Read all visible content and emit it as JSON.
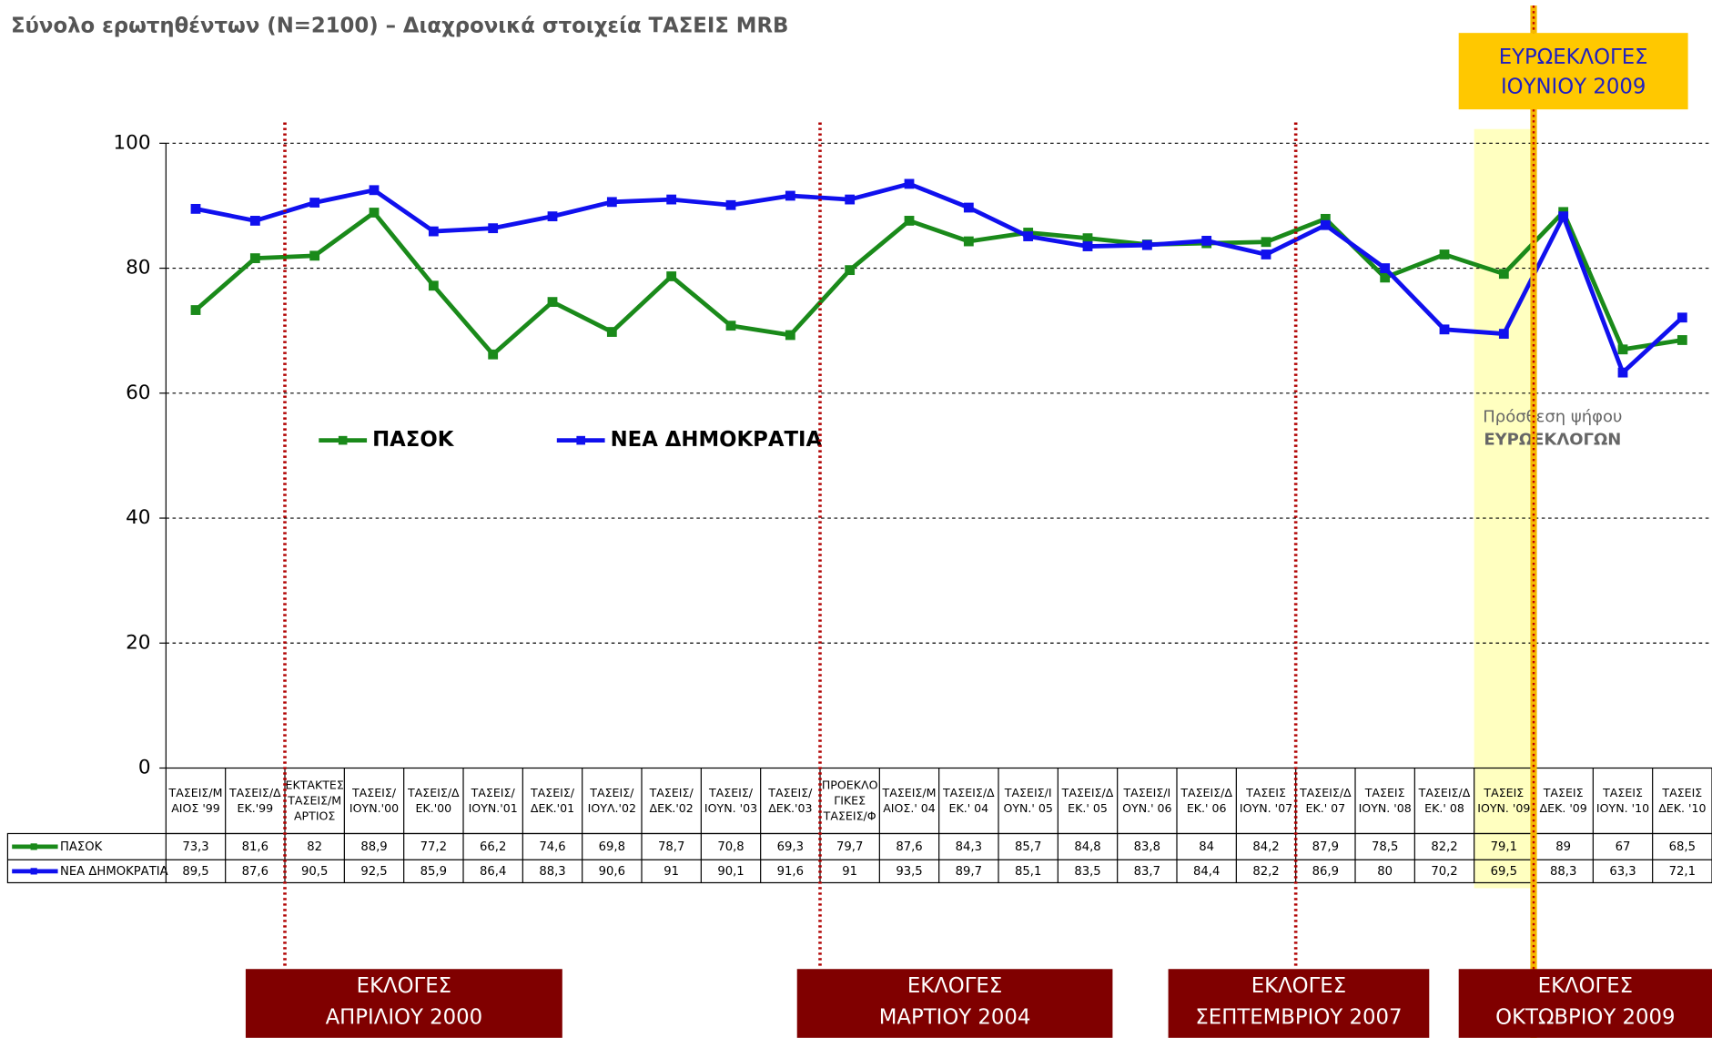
{
  "chart_data": {
    "type": "line",
    "title": "Σύνολο ερωτηθέντων (N=2100) – Διαχρονικά στοιχεία ΤΑΣΕΙΣ MRB",
    "categories": [
      "ΤΑΣΕΙΣ/Μ\nΑΙΟΣ '99",
      "ΤΑΣΕΙΣ/Δ\nΕΚ.'99",
      "ΕΚΤΑΚΤΕΣ\nΤΑΣΕΙΣ/Μ\nΑΡΤΙΟΣ",
      "ΤΑΣΕΙΣ/\nΙΟΥΝ.'00",
      "ΤΑΣΕΙΣ/Δ\nΕΚ.'00",
      "ΤΑΣΕΙΣ/\nΙΟΥΝ.'01",
      "ΤΑΣΕΙΣ/\nΔΕΚ.'01",
      "ΤΑΣΕΙΣ/\nΙΟΥΛ.'02",
      "ΤΑΣΕΙΣ/\nΔΕΚ.'02",
      "ΤΑΣΕΙΣ/\nΙΟΥΝ. '03",
      "ΤΑΣΕΙΣ/\nΔΕΚ.'03",
      "ΠΡΟΕΚΛΟ\nΓΙΚΕΣ\nΤΑΣΕΙΣ/Φ",
      "ΤΑΣΕΙΣ/Μ\nΑΙΟΣ.' 04",
      "ΤΑΣΕΙΣ/Δ\nΕΚ.' 04",
      "ΤΑΣΕΙΣ/Ι\nΟΥΝ.' 05",
      "ΤΑΣΕΙΣ/Δ\nΕΚ.' 05",
      "ΤΑΣΕΙΣ/Ι\nΟΥΝ.' 06",
      "ΤΑΣΕΙΣ/Δ\nΕΚ.' 06",
      "ΤΑΣΕΙΣ\nΙΟΥΝ. '07",
      "ΤΑΣΕΙΣ/Δ\nΕΚ.' 07",
      "ΤΑΣΕΙΣ\nΙΟΥΝ. '08",
      "ΤΑΣΕΙΣ/Δ\nΕΚ.' 08",
      "ΤΑΣΕΙΣ\nΙΟΥΝ. '09",
      "ΤΑΣΕΙΣ\nΔΕΚ. '09",
      "ΤΑΣΕΙΣ\nΙΟΥΝ. '10",
      "ΤΑΣΕΙΣ\nΔΕΚ. '10"
    ],
    "series": [
      {
        "name": "ΠΑΣΟΚ",
        "color": "#1a8a1a",
        "values": [
          73.3,
          81.6,
          82,
          88.9,
          77.2,
          66.2,
          74.6,
          69.8,
          78.7,
          70.8,
          69.3,
          79.7,
          87.6,
          84.3,
          85.7,
          84.8,
          83.8,
          84,
          84.2,
          87.9,
          78.5,
          82.2,
          79.1,
          89,
          67,
          68.5
        ],
        "value_labels": [
          "73,3",
          "81,6",
          "82",
          "88,9",
          "77,2",
          "66,2",
          "74,6",
          "69,8",
          "78,7",
          "70,8",
          "69,3",
          "79,7",
          "87,6",
          "84,3",
          "85,7",
          "84,8",
          "83,8",
          "84",
          "84,2",
          "87,9",
          "78,5",
          "82,2",
          "79,1",
          "89",
          "67",
          "68,5"
        ]
      },
      {
        "name": "ΝΕΑ ΔΗΜΟΚΡΑΤΙΑ",
        "color": "#1010ee",
        "values": [
          89.5,
          87.6,
          90.5,
          92.5,
          85.9,
          86.4,
          88.3,
          90.6,
          91,
          90.1,
          91.6,
          91,
          93.5,
          89.7,
          85.1,
          83.5,
          83.7,
          84.4,
          82.2,
          86.9,
          80,
          70.2,
          69.5,
          88.3,
          63.3,
          72.1
        ],
        "value_labels": [
          "89,5",
          "87,6",
          "90,5",
          "92,5",
          "85,9",
          "86,4",
          "88,3",
          "90,6",
          "91",
          "90,1",
          "91,6",
          "91",
          "93,5",
          "89,7",
          "85,1",
          "83,5",
          "83,7",
          "84,4",
          "82,2",
          "86,9",
          "80",
          "70,2",
          "69,5",
          "88,3",
          "63,3",
          "72,1"
        ]
      }
    ],
    "ylim": [
      0,
      100
    ],
    "yticks": [
      0,
      20,
      40,
      60,
      80,
      100
    ],
    "grid": true,
    "annotations": [
      "ΕΚΛΟΓΕΣ\nΑΠΡΙΛΙΟΥ 2000",
      "ΕΚΛΟΓΕΣ\nΜΑΡΤΙΟΥ 2004",
      "ΕΚΛΟΓΕΣ\nΣΕΠΤΕΜΒΡΙΟΥ 2007",
      "ΕΚΛΟΓΕΣ\nΟΚΤΩΒΡΙΟΥ  2009"
    ],
    "top_annotation": "ΕΥΡΩΕΚΛΟΓΕΣ\nΙΟΥΝΙΟΥ 2009",
    "note": "Πρόσθεση ψήφου",
    "note_bold": "ΕΥΡΩΕΚΛΟΓΩΝ"
  }
}
